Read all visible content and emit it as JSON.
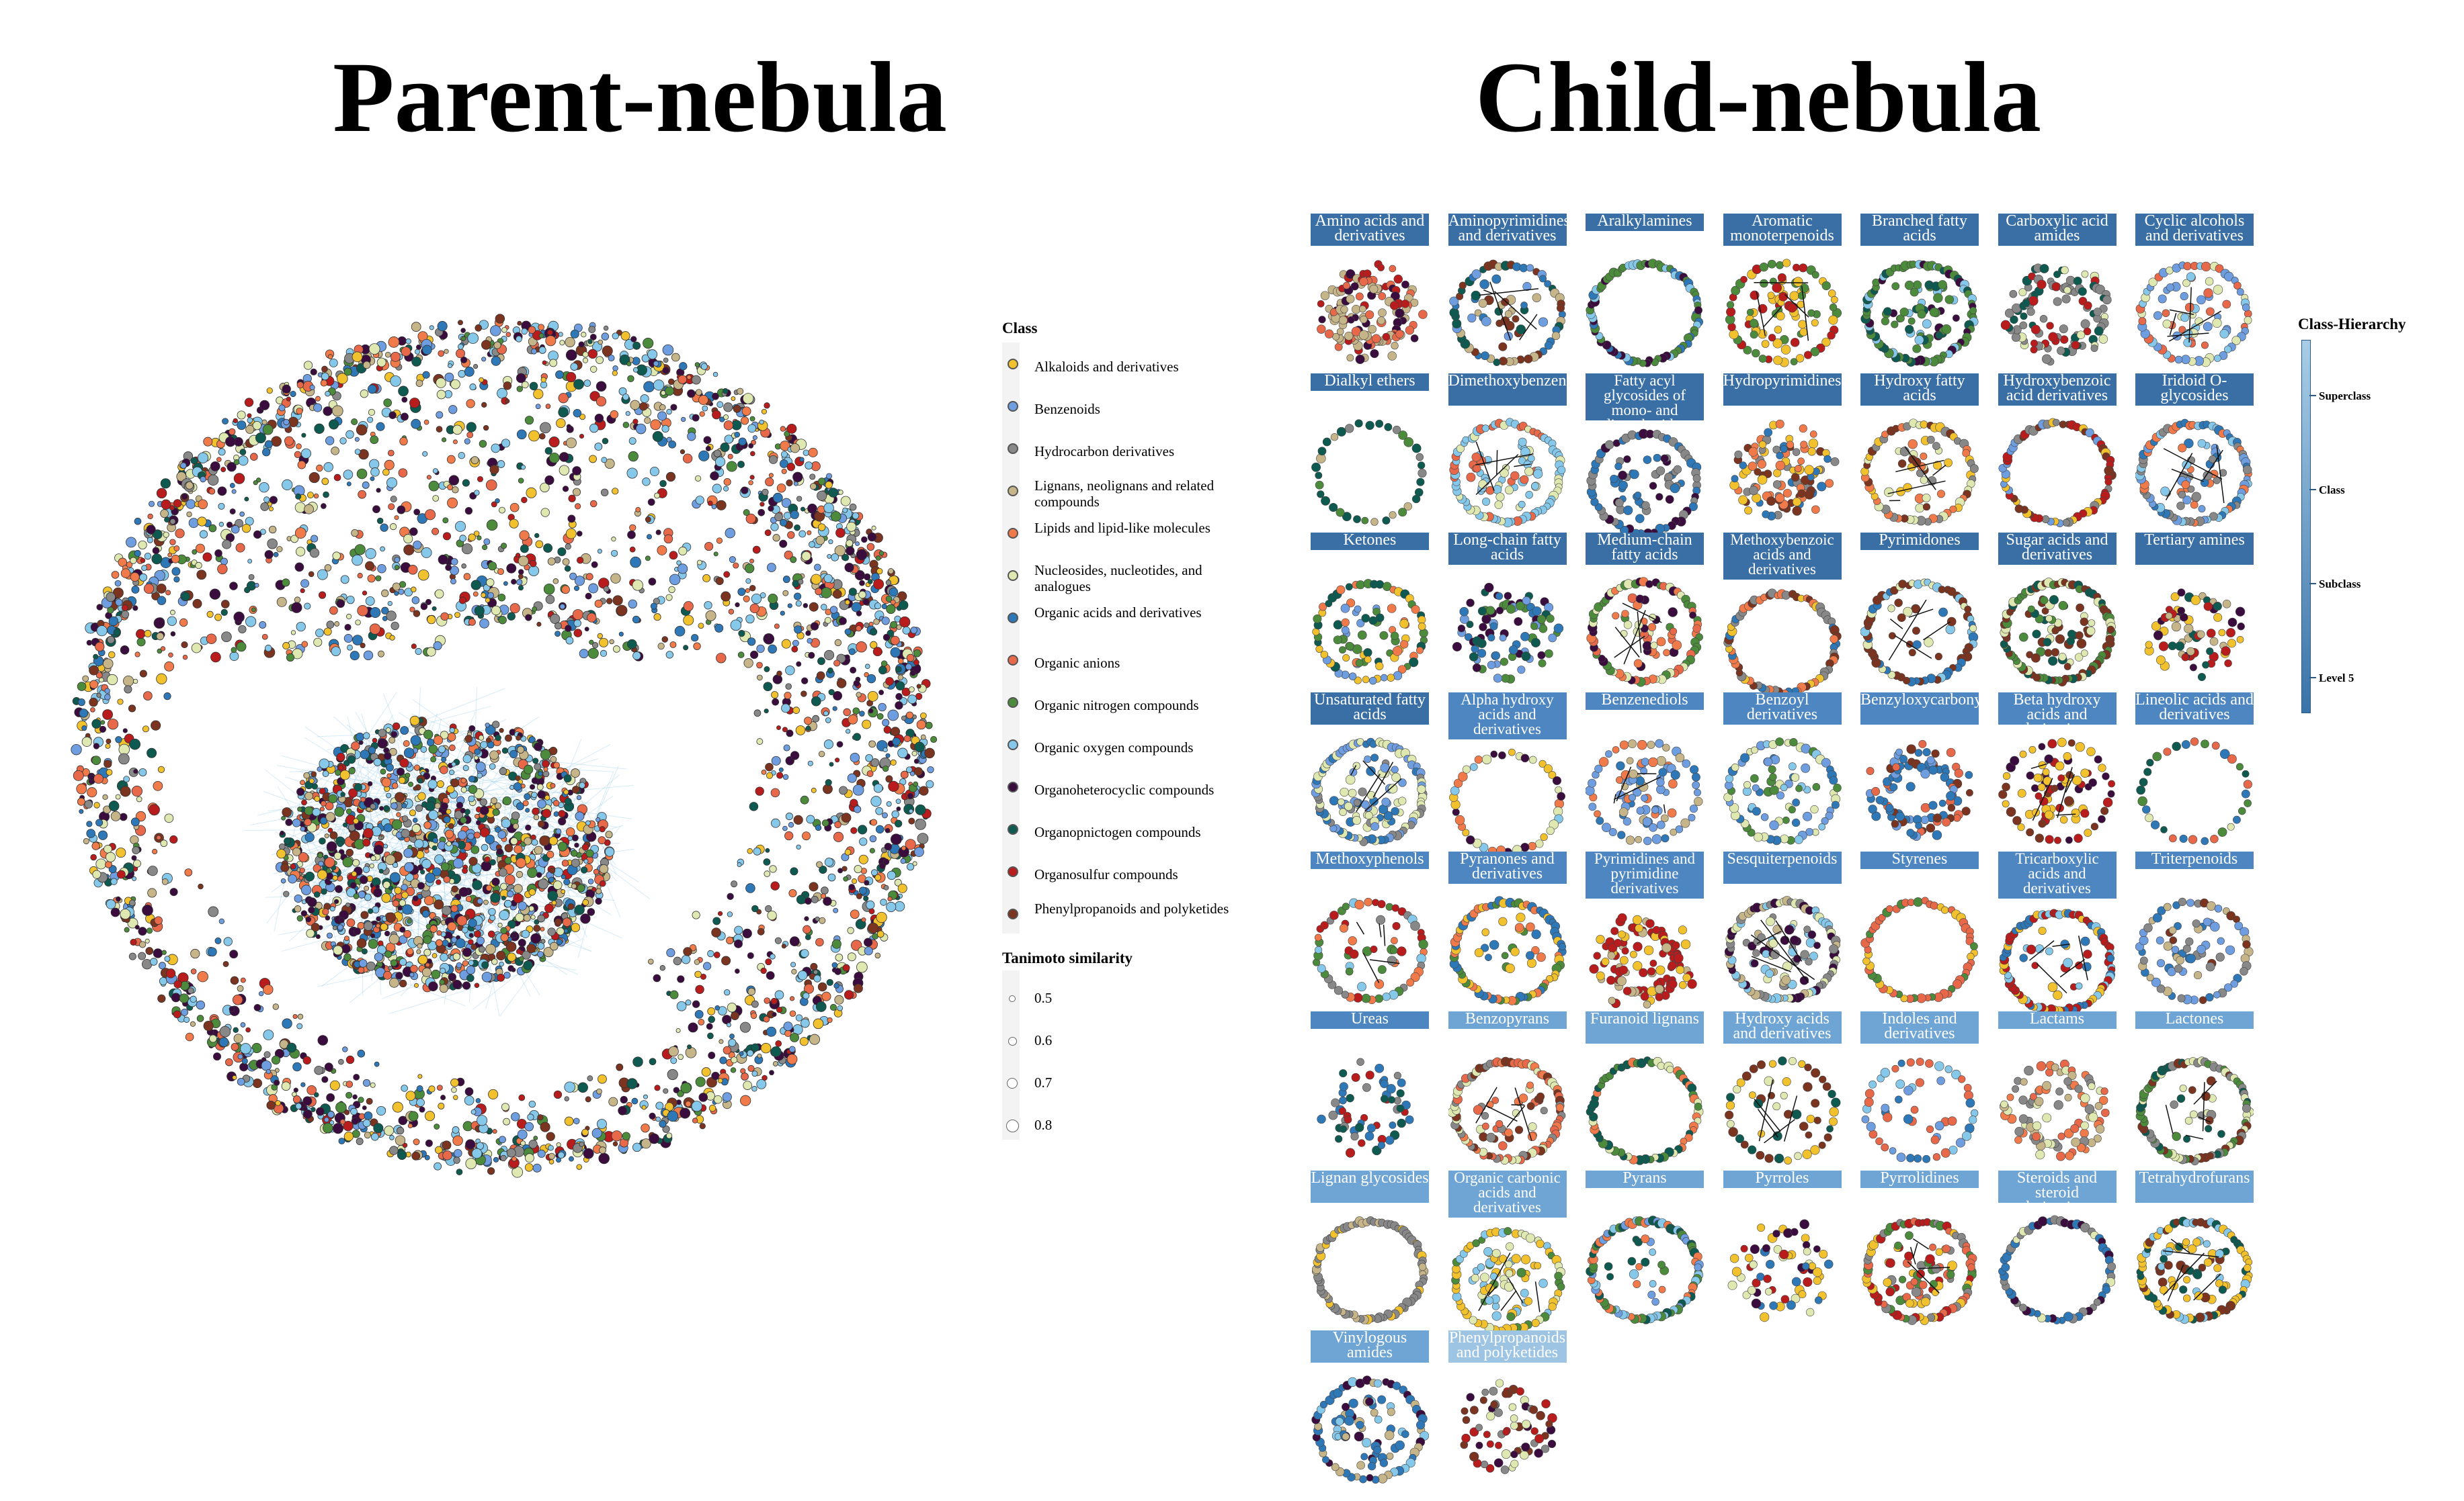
{
  "titles": {
    "parent": "Parent-nebula",
    "child": "Child-nebula"
  },
  "legend_class": {
    "title": "Class",
    "items": [
      {
        "label": "Alkaloids and derivatives",
        "color": "#f2c12e"
      },
      {
        "label": "Benzenoids",
        "color": "#6e9de0"
      },
      {
        "label": "Hydrocarbon derivatives",
        "color": "#888888"
      },
      {
        "label": "Lignans, neolignans and related compounds",
        "color": "#c7b58a"
      },
      {
        "label": "Lipids and lipid-like molecules",
        "color": "#f07a4a"
      },
      {
        "label": "Nucleosides, nucleotides, and analogues",
        "color": "#dfe8b0"
      },
      {
        "label": "Organic acids and derivatives",
        "color": "#2f78b8"
      },
      {
        "label": "Organic anions",
        "color": "#e8694a"
      },
      {
        "label": "Organic nitrogen compounds",
        "color": "#4c8a3c"
      },
      {
        "label": "Organic oxygen compounds",
        "color": "#86c8ea"
      },
      {
        "label": "Organoheterocyclic compounds",
        "color": "#3a0d3e"
      },
      {
        "label": "Organopnictogen compounds",
        "color": "#0e5a50"
      },
      {
        "label": "Organosulfur compounds",
        "color": "#b81c1c"
      },
      {
        "label": "Phenylpropanoids and polyketides",
        "color": "#7a3420"
      }
    ]
  },
  "legend_similarity": {
    "title": "Tanimoto similarity",
    "items": [
      {
        "label": "0.5",
        "value": 0.5
      },
      {
        "label": "0.6",
        "value": 0.6
      },
      {
        "label": "0.7",
        "value": 0.7
      },
      {
        "label": "0.8",
        "value": 0.8
      }
    ]
  },
  "hierarchy_legend": {
    "title": "Class-Hierarchy",
    "levels": [
      {
        "label": "Superclass",
        "color": "#9ec4e4"
      },
      {
        "label": "Class",
        "color": "#6fa5d4"
      },
      {
        "label": "Subclass",
        "color": "#4d86c0"
      },
      {
        "label": "Level 5",
        "color": "#3a6fa5"
      }
    ]
  },
  "child_panels": [
    {
      "label": "Amino acids and derivatives",
      "level": "Level 5"
    },
    {
      "label": "Aminopyrimidines and derivatives",
      "level": "Level 5"
    },
    {
      "label": "Aralkylamines",
      "level": "Level 5"
    },
    {
      "label": "Aromatic monoterpenoids",
      "level": "Level 5"
    },
    {
      "label": "Branched fatty acids",
      "level": "Level 5"
    },
    {
      "label": "Carboxylic acid amides",
      "level": "Level 5"
    },
    {
      "label": "Cyclic alcohols and derivatives",
      "level": "Level 5"
    },
    {
      "label": "Dialkyl ethers",
      "level": "Level 5"
    },
    {
      "label": "Dimethoxybenzenes",
      "level": "Level 5"
    },
    {
      "label": "Fatty acyl glycosides of mono- and disaccharides",
      "level": "Level 5"
    },
    {
      "label": "Hydropyrimidines",
      "level": "Level 5"
    },
    {
      "label": "Hydroxy fatty acids",
      "level": "Level 5"
    },
    {
      "label": "Hydroxybenzoic acid derivatives",
      "level": "Level 5"
    },
    {
      "label": "Iridoid O-glycosides",
      "level": "Level 5"
    },
    {
      "label": "Ketones",
      "level": "Level 5"
    },
    {
      "label": "Long-chain fatty acids",
      "level": "Level 5"
    },
    {
      "label": "Medium-chain fatty acids",
      "level": "Level 5"
    },
    {
      "label": "Methoxybenzoic acids and derivatives",
      "level": "Level 5"
    },
    {
      "label": "Pyrimidones",
      "level": "Level 5"
    },
    {
      "label": "Sugar acids and derivatives",
      "level": "Level 5"
    },
    {
      "label": "Tertiary amines",
      "level": "Level 5"
    },
    {
      "label": "Unsaturated fatty acids",
      "level": "Level 5"
    },
    {
      "label": "Alpha hydroxy acids and derivatives",
      "level": "Subclass"
    },
    {
      "label": "Benzenediols",
      "level": "Subclass"
    },
    {
      "label": "Benzoyl derivatives",
      "level": "Subclass"
    },
    {
      "label": "Benzyloxycarbonyls",
      "level": "Subclass"
    },
    {
      "label": "Beta hydroxy acids and derivatives",
      "level": "Subclass"
    },
    {
      "label": "Lineolic acids and derivatives",
      "level": "Subclass"
    },
    {
      "label": "Methoxyphenols",
      "level": "Subclass"
    },
    {
      "label": "Pyranones and derivatives",
      "level": "Subclass"
    },
    {
      "label": "Pyrimidines and pyrimidine derivatives",
      "level": "Subclass"
    },
    {
      "label": "Sesquiterpenoids",
      "level": "Subclass"
    },
    {
      "label": "Styrenes",
      "level": "Subclass"
    },
    {
      "label": "Tricarboxylic acids and derivatives",
      "level": "Subclass"
    },
    {
      "label": "Triterpenoids",
      "level": "Subclass"
    },
    {
      "label": "Ureas",
      "level": "Subclass"
    },
    {
      "label": "Benzopyrans",
      "level": "Class"
    },
    {
      "label": "Furanoid lignans",
      "level": "Class"
    },
    {
      "label": "Hydroxy acids and derivatives",
      "level": "Class"
    },
    {
      "label": "Indoles and derivatives",
      "level": "Class"
    },
    {
      "label": "Lactams",
      "level": "Class"
    },
    {
      "label": "Lactones",
      "level": "Class"
    },
    {
      "label": "Lignan glycosides",
      "level": "Class"
    },
    {
      "label": "Organic carbonic acids and derivatives",
      "level": "Class"
    },
    {
      "label": "Pyrans",
      "level": "Class"
    },
    {
      "label": "Pyrroles",
      "level": "Class"
    },
    {
      "label": "Pyrrolidines",
      "level": "Class"
    },
    {
      "label": "Steroids and steroid derivatives",
      "level": "Class"
    },
    {
      "label": "Tetrahydrofurans",
      "level": "Class"
    },
    {
      "label": "Vinylogous amides",
      "level": "Class"
    },
    {
      "label": "Phenylpropanoids and polyketides",
      "level": "Superclass"
    }
  ]
}
